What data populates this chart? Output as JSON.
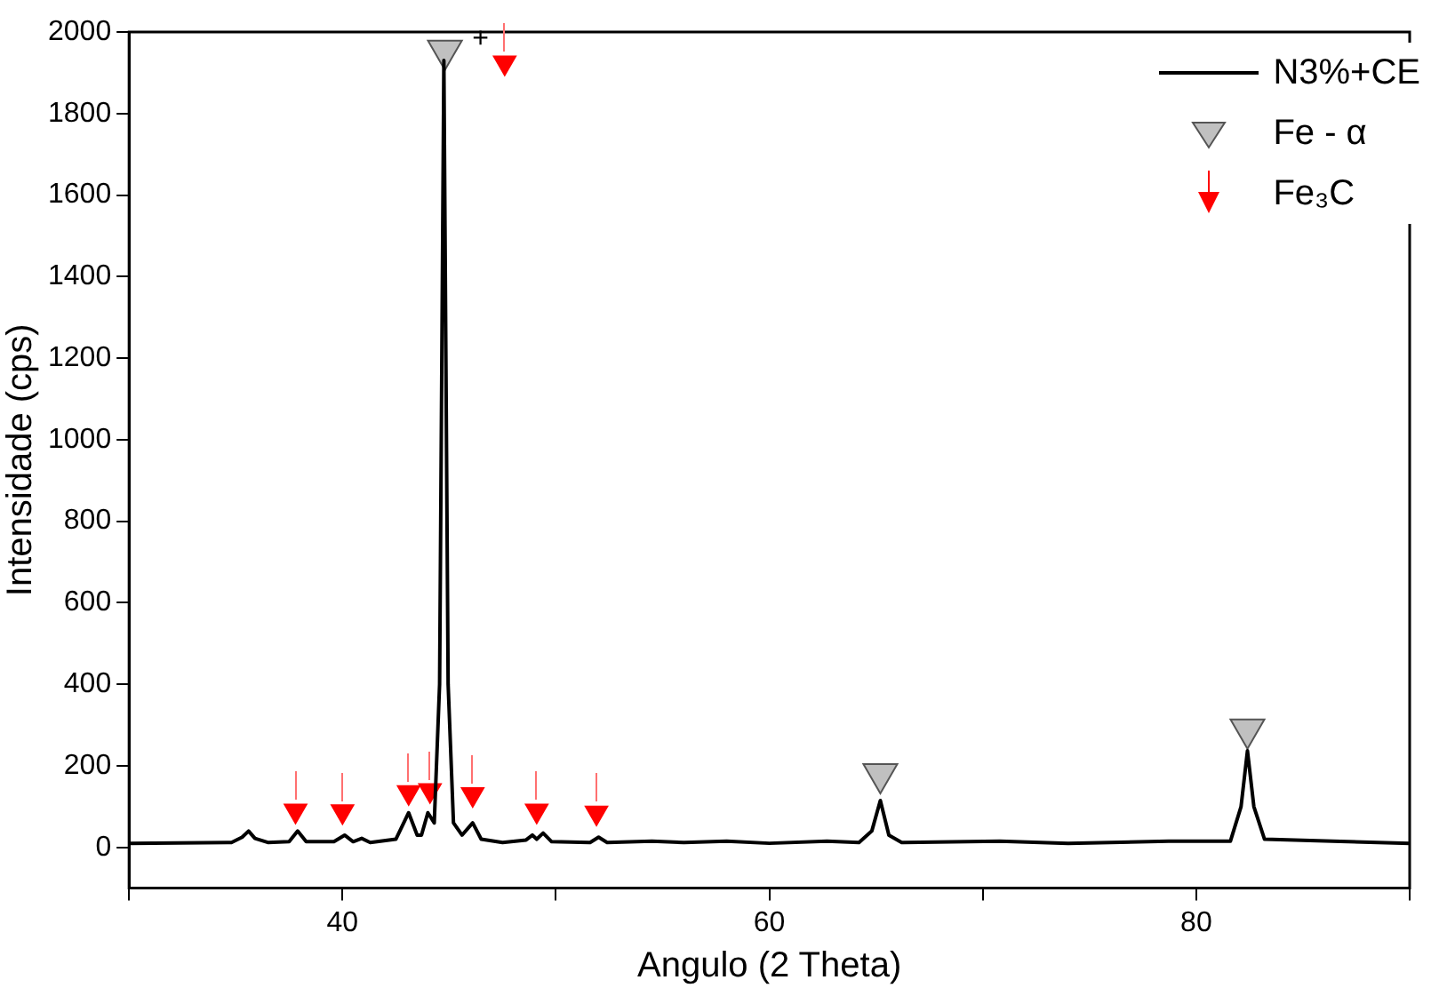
{
  "chart_data": {
    "type": "line",
    "xlabel": "Angulo (2 Theta)",
    "ylabel": "Intensidade (cps)",
    "xlim": [
      30,
      90
    ],
    "ylim": [
      -100,
      2000
    ],
    "xticks": [
      {
        "value": 30,
        "label": null
      },
      40,
      {
        "value": 50,
        "label": null
      },
      60,
      {
        "value": 70,
        "label": null
      },
      80,
      {
        "value": 90,
        "label": null
      }
    ],
    "yticks": [
      0,
      200,
      400,
      600,
      800,
      1000,
      1200,
      1400,
      1600,
      1800,
      2000
    ],
    "grid": false,
    "legend": "top right",
    "line_style": "solid",
    "annotations": [
      "+"
    ],
    "series": [
      {
        "name": "N3%+CE",
        "color": "#000000",
        "marker": "none",
        "x": [
          30,
          34.8,
          35.3,
          35.6,
          35.9,
          36.5,
          37.5,
          37.9,
          38.3,
          39.6,
          40.1,
          40.5,
          40.9,
          41.3,
          42.5,
          43.1,
          43.5,
          43.7,
          44.0,
          44.3,
          44.55,
          44.75,
          44.95,
          45.2,
          45.6,
          46.1,
          46.5,
          47.5,
          48.6,
          48.9,
          49.1,
          49.4,
          49.8,
          51.6,
          52.0,
          52.4,
          54.5,
          56,
          58,
          60,
          62.7,
          64.2,
          64.8,
          65.2,
          65.6,
          66.2,
          70.8,
          74,
          78.7,
          81.6,
          82.1,
          82.4,
          82.7,
          83.2,
          86.4,
          90
        ],
        "values": [
          10,
          12,
          25,
          40,
          22,
          12,
          14,
          40,
          14,
          14,
          30,
          14,
          22,
          12,
          20,
          85,
          30,
          30,
          85,
          60,
          400,
          1930,
          400,
          60,
          30,
          60,
          20,
          12,
          18,
          30,
          20,
          35,
          14,
          12,
          25,
          12,
          15,
          12,
          15,
          10,
          15,
          12,
          40,
          115,
          30,
          12,
          15,
          10,
          15,
          15,
          100,
          237,
          100,
          20,
          15,
          10
        ]
      },
      {
        "name": "Fe - α",
        "type": "scatter",
        "color": "#c0c0c0",
        "marker": "triangle",
        "x": [
          44.8,
          65.2,
          82.4
        ],
        "values": [
          1955,
          180,
          290
        ]
      },
      {
        "name": "Fe₃C",
        "type": "scatter",
        "color": "#ff0000",
        "marker": "triangle",
        "x": [
          37.8,
          40.0,
          43.1,
          44.1,
          46.1,
          47.6,
          49.1,
          51.9
        ],
        "values": [
          90,
          88,
          135,
          140,
          130,
          1925,
          90,
          85
        ]
      }
    ]
  }
}
